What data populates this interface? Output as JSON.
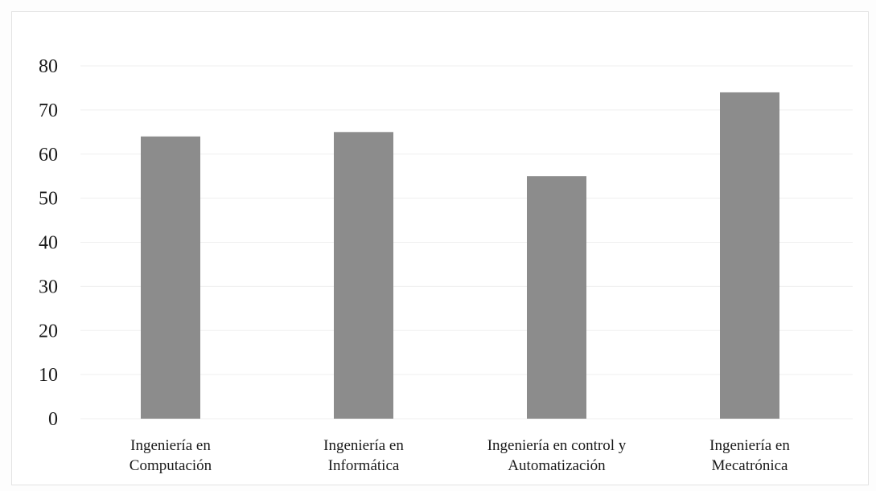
{
  "chart_data": {
    "type": "bar",
    "categories": [
      [
        "Ingeniería en",
        "Computación"
      ],
      [
        "Ingeniería en",
        "Informática"
      ],
      [
        "Ingeniería en control y",
        "Automatización"
      ],
      [
        "Ingeniería en",
        "Mecatrónica"
      ]
    ],
    "values": [
      64,
      65,
      55,
      74
    ],
    "title": "",
    "xlabel": "",
    "ylabel": "",
    "ylim": [
      0,
      80
    ],
    "yticks": [
      "0",
      "10",
      "20",
      "30",
      "40",
      "50",
      "60",
      "70",
      "80"
    ],
    "grid": true,
    "legend": "none",
    "colors": {
      "bar": "#8c8c8c",
      "grid": "#efefef",
      "text": "#1a1a1a"
    }
  }
}
